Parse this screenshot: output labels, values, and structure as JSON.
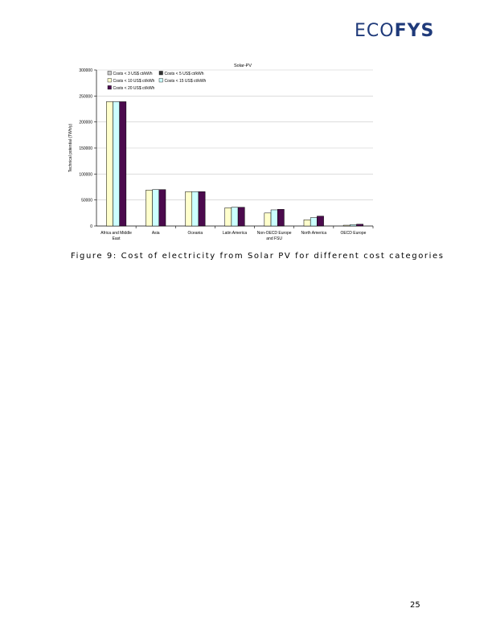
{
  "header": {
    "logo_eco": "ECO",
    "logo_fys": "FYS"
  },
  "caption": "Figure 9: Cost of electricity from Solar PV for different cost categories",
  "page_number": "25",
  "chart_data": {
    "type": "bar",
    "title": "Solar-PV",
    "xlabel": "",
    "ylabel": "Technical potential (TWh/y)",
    "ylim": [
      0,
      300000
    ],
    "yticks": [
      0,
      50000,
      100000,
      150000,
      200000,
      250000,
      300000
    ],
    "ytick_labels": [
      "0",
      "50000",
      "100000",
      "150000",
      "200000",
      "250000",
      "300000"
    ],
    "grid": "horizontal",
    "legend_position": "top-left",
    "categories": [
      [
        "Africa and Middle",
        "East"
      ],
      [
        "Asia"
      ],
      [
        "Oceania"
      ],
      [
        "Latin America"
      ],
      [
        "Non-OECD Europe",
        "and FSU"
      ],
      [
        "North America"
      ],
      [
        "OECD Europe"
      ]
    ],
    "series": [
      {
        "name": "Costs < 3 US$ ct/kWh",
        "color": "#c9c9c9",
        "values": [
          0,
          0,
          0,
          0,
          0,
          0,
          0
        ]
      },
      {
        "name": "Costs < 5 US$ ct/kWh",
        "color": "#333333",
        "values": [
          0,
          0,
          0,
          0,
          0,
          0,
          0
        ]
      },
      {
        "name": "Costs < 10 US$ ct/kWh",
        "color": "#ffffcc",
        "values": [
          239000,
          69000,
          66000,
          35000,
          25000,
          12000,
          1500
        ]
      },
      {
        "name": "Costs < 15 US$ ct/kWh",
        "color": "#ccffff",
        "values": [
          239000,
          70000,
          66000,
          36000,
          31000,
          16000,
          2500
        ]
      },
      {
        "name": "Costs < 20 US$ ct/kWh",
        "color": "#4b0a4d",
        "values": [
          239000,
          70000,
          66000,
          36000,
          32000,
          19000,
          3500
        ]
      }
    ]
  }
}
